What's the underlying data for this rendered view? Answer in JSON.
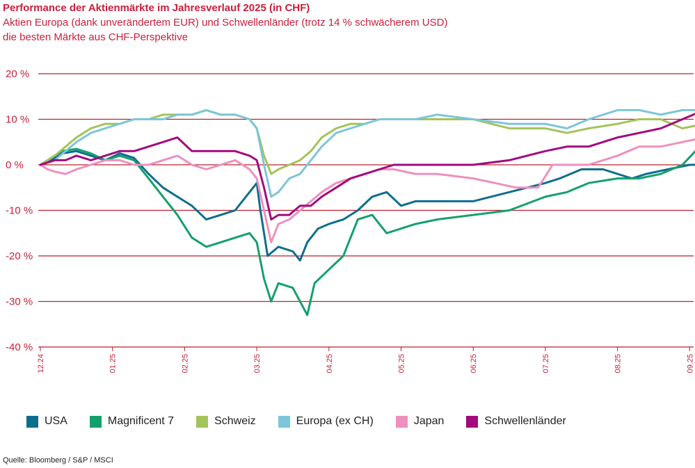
{
  "chart_data": {
    "type": "line",
    "title": "Performance der Aktienmärkte im Jahresverlauf 2025 (in CHF)",
    "subtitle_lines": [
      "Aktien Europa (dank unverändertem EUR) und Schwellenländer (trotz 14 % schwächerem USD)",
      "die besten Märkte aus CHF-Perspektive"
    ],
    "ylim": [
      -40,
      20
    ],
    "yticks": [
      20,
      10,
      0,
      -10,
      -20,
      -30,
      -40
    ],
    "ytick_labels": [
      "20 %",
      "10 %",
      "0 %",
      "-10 %",
      "-20 %",
      "-30 %",
      "-40 %"
    ],
    "xticks": [
      "12.24",
      "01.25",
      "02.25",
      "03.25",
      "04.25",
      "05.25",
      "06.25",
      "07.25",
      "08.25",
      "09.25"
    ],
    "grid": true,
    "legend_position": "bottom",
    "series": [
      {
        "name": "USA",
        "color": "#0d6e8c",
        "points": [
          [
            0,
            0
          ],
          [
            0.1,
            0.5
          ],
          [
            0.2,
            1.5
          ],
          [
            0.3,
            2.5
          ],
          [
            0.5,
            3
          ],
          [
            0.7,
            2
          ],
          [
            0.9,
            1
          ],
          [
            1.1,
            2.5
          ],
          [
            1.3,
            1.5
          ],
          [
            1.5,
            -2
          ],
          [
            1.7,
            -5
          ],
          [
            1.9,
            -7
          ],
          [
            2.1,
            -9
          ],
          [
            2.3,
            -12
          ],
          [
            2.5,
            -11
          ],
          [
            2.7,
            -10
          ],
          [
            2.9,
            -6
          ],
          [
            3.0,
            -4
          ],
          [
            3.05,
            -10
          ],
          [
            3.15,
            -20
          ],
          [
            3.3,
            -18
          ],
          [
            3.5,
            -19
          ],
          [
            3.6,
            -21
          ],
          [
            3.7,
            -17
          ],
          [
            3.85,
            -14
          ],
          [
            4.0,
            -13
          ],
          [
            4.2,
            -12
          ],
          [
            4.4,
            -10
          ],
          [
            4.6,
            -7
          ],
          [
            4.8,
            -6
          ],
          [
            5.0,
            -9
          ],
          [
            5.2,
            -8
          ],
          [
            5.5,
            -8
          ],
          [
            6.0,
            -8
          ],
          [
            6.5,
            -6
          ],
          [
            7.0,
            -4
          ],
          [
            7.2,
            -3
          ],
          [
            7.5,
            -1
          ],
          [
            7.8,
            -1
          ],
          [
            8.0,
            -2
          ],
          [
            8.2,
            -3
          ],
          [
            8.4,
            -2
          ],
          [
            8.7,
            -1
          ],
          [
            9.0,
            0
          ],
          [
            9.2,
            0
          ]
        ]
      },
      {
        "name": "Magnificent 7",
        "color": "#14a06c",
        "points": [
          [
            0,
            0
          ],
          [
            0.1,
            1
          ],
          [
            0.2,
            2
          ],
          [
            0.3,
            3
          ],
          [
            0.5,
            3.5
          ],
          [
            0.7,
            2.5
          ],
          [
            0.9,
            1
          ],
          [
            1.1,
            2
          ],
          [
            1.3,
            1
          ],
          [
            1.5,
            -3
          ],
          [
            1.7,
            -7
          ],
          [
            1.9,
            -11
          ],
          [
            2.1,
            -16
          ],
          [
            2.3,
            -18
          ],
          [
            2.5,
            -17
          ],
          [
            2.7,
            -16
          ],
          [
            2.9,
            -15
          ],
          [
            3.0,
            -17
          ],
          [
            3.1,
            -25
          ],
          [
            3.2,
            -30
          ],
          [
            3.3,
            -26
          ],
          [
            3.5,
            -27
          ],
          [
            3.6,
            -30
          ],
          [
            3.7,
            -33
          ],
          [
            3.8,
            -26
          ],
          [
            4.0,
            -23
          ],
          [
            4.2,
            -20
          ],
          [
            4.4,
            -12
          ],
          [
            4.6,
            -11
          ],
          [
            4.8,
            -15
          ],
          [
            5.0,
            -14
          ],
          [
            5.2,
            -13
          ],
          [
            5.5,
            -12
          ],
          [
            6.0,
            -11
          ],
          [
            6.5,
            -10
          ],
          [
            7.0,
            -7
          ],
          [
            7.3,
            -6
          ],
          [
            7.6,
            -4
          ],
          [
            8.0,
            -3
          ],
          [
            8.3,
            -3
          ],
          [
            8.6,
            -2
          ],
          [
            8.9,
            0
          ],
          [
            9.2,
            5
          ]
        ]
      },
      {
        "name": "Schweiz",
        "color": "#a3c45a",
        "points": [
          [
            0,
            0
          ],
          [
            0.1,
            1
          ],
          [
            0.2,
            2
          ],
          [
            0.35,
            4
          ],
          [
            0.5,
            6
          ],
          [
            0.7,
            8
          ],
          [
            0.9,
            9
          ],
          [
            1.1,
            9
          ],
          [
            1.3,
            10
          ],
          [
            1.5,
            10
          ],
          [
            1.7,
            11
          ],
          [
            1.9,
            11
          ],
          [
            2.1,
            11
          ],
          [
            2.3,
            12
          ],
          [
            2.5,
            11
          ],
          [
            2.7,
            11
          ],
          [
            2.9,
            10
          ],
          [
            3.0,
            8
          ],
          [
            3.1,
            2
          ],
          [
            3.2,
            -2
          ],
          [
            3.3,
            -1
          ],
          [
            3.45,
            0
          ],
          [
            3.6,
            1
          ],
          [
            3.75,
            3
          ],
          [
            3.9,
            6
          ],
          [
            4.1,
            8
          ],
          [
            4.3,
            9
          ],
          [
            4.5,
            9
          ],
          [
            4.7,
            10
          ],
          [
            4.9,
            10
          ],
          [
            5.2,
            10
          ],
          [
            5.5,
            10
          ],
          [
            6.0,
            10
          ],
          [
            6.5,
            8
          ],
          [
            7.0,
            8
          ],
          [
            7.3,
            7
          ],
          [
            7.6,
            8
          ],
          [
            8.0,
            9
          ],
          [
            8.3,
            10
          ],
          [
            8.6,
            10
          ],
          [
            8.9,
            8
          ],
          [
            9.2,
            9
          ]
        ]
      },
      {
        "name": "Europa (ex CH)",
        "color": "#7cc6d8",
        "points": [
          [
            0,
            0
          ],
          [
            0.1,
            0.5
          ],
          [
            0.2,
            1
          ],
          [
            0.35,
            3
          ],
          [
            0.5,
            5
          ],
          [
            0.7,
            7
          ],
          [
            0.9,
            8
          ],
          [
            1.1,
            9
          ],
          [
            1.3,
            10
          ],
          [
            1.5,
            10
          ],
          [
            1.7,
            10
          ],
          [
            1.9,
            11
          ],
          [
            2.1,
            11
          ],
          [
            2.3,
            12
          ],
          [
            2.5,
            11
          ],
          [
            2.7,
            11
          ],
          [
            2.9,
            10
          ],
          [
            3.0,
            8
          ],
          [
            3.1,
            0
          ],
          [
            3.2,
            -7
          ],
          [
            3.3,
            -6
          ],
          [
            3.45,
            -3
          ],
          [
            3.6,
            -2
          ],
          [
            3.75,
            1
          ],
          [
            3.9,
            4
          ],
          [
            4.1,
            7
          ],
          [
            4.3,
            8
          ],
          [
            4.5,
            9
          ],
          [
            4.7,
            10
          ],
          [
            4.9,
            10
          ],
          [
            5.2,
            10
          ],
          [
            5.5,
            11
          ],
          [
            6.0,
            10
          ],
          [
            6.5,
            9
          ],
          [
            7.0,
            9
          ],
          [
            7.3,
            8
          ],
          [
            7.6,
            10
          ],
          [
            8.0,
            12
          ],
          [
            8.3,
            12
          ],
          [
            8.6,
            11
          ],
          [
            8.9,
            12
          ],
          [
            9.2,
            12
          ]
        ]
      },
      {
        "name": "Japan",
        "color": "#ef8fbf",
        "points": [
          [
            0,
            0
          ],
          [
            0.1,
            -1
          ],
          [
            0.2,
            -1.5
          ],
          [
            0.35,
            -2
          ],
          [
            0.5,
            -1
          ],
          [
            0.7,
            0
          ],
          [
            0.9,
            1
          ],
          [
            1.1,
            1
          ],
          [
            1.3,
            0
          ],
          [
            1.5,
            0
          ],
          [
            1.7,
            1
          ],
          [
            1.9,
            2
          ],
          [
            2.1,
            0
          ],
          [
            2.3,
            -1
          ],
          [
            2.5,
            0
          ],
          [
            2.7,
            1
          ],
          [
            2.9,
            -1
          ],
          [
            3.0,
            -3
          ],
          [
            3.1,
            -10
          ],
          [
            3.2,
            -17
          ],
          [
            3.3,
            -13
          ],
          [
            3.45,
            -12
          ],
          [
            3.6,
            -10
          ],
          [
            3.75,
            -8
          ],
          [
            3.9,
            -6
          ],
          [
            4.1,
            -4
          ],
          [
            4.3,
            -3
          ],
          [
            4.5,
            -2
          ],
          [
            4.7,
            -1
          ],
          [
            4.9,
            -1
          ],
          [
            5.2,
            -2
          ],
          [
            5.5,
            -2
          ],
          [
            6.0,
            -3
          ],
          [
            6.3,
            -4
          ],
          [
            6.6,
            -5
          ],
          [
            6.9,
            -5
          ],
          [
            7.1,
            0
          ],
          [
            7.3,
            0
          ],
          [
            7.6,
            0
          ],
          [
            8.0,
            2
          ],
          [
            8.3,
            4
          ],
          [
            8.6,
            4
          ],
          [
            8.9,
            5
          ],
          [
            9.2,
            6
          ]
        ]
      },
      {
        "name": "Schwellenländer",
        "color": "#a3097c",
        "points": [
          [
            0,
            0
          ],
          [
            0.1,
            0.5
          ],
          [
            0.2,
            1
          ],
          [
            0.35,
            1
          ],
          [
            0.5,
            2
          ],
          [
            0.7,
            1
          ],
          [
            0.9,
            2
          ],
          [
            1.1,
            3
          ],
          [
            1.3,
            3
          ],
          [
            1.5,
            4
          ],
          [
            1.7,
            5
          ],
          [
            1.9,
            6
          ],
          [
            2.1,
            3
          ],
          [
            2.3,
            3
          ],
          [
            2.5,
            3
          ],
          [
            2.7,
            3
          ],
          [
            2.9,
            2
          ],
          [
            3.0,
            1
          ],
          [
            3.1,
            -5
          ],
          [
            3.2,
            -12
          ],
          [
            3.3,
            -11
          ],
          [
            3.45,
            -11
          ],
          [
            3.6,
            -9
          ],
          [
            3.75,
            -9
          ],
          [
            3.9,
            -7
          ],
          [
            4.1,
            -5
          ],
          [
            4.3,
            -3
          ],
          [
            4.5,
            -2
          ],
          [
            4.7,
            -1
          ],
          [
            4.9,
            0
          ],
          [
            5.2,
            0
          ],
          [
            5.5,
            0
          ],
          [
            6.0,
            0
          ],
          [
            6.5,
            1
          ],
          [
            7.0,
            3
          ],
          [
            7.3,
            4
          ],
          [
            7.6,
            4
          ],
          [
            8.0,
            6
          ],
          [
            8.3,
            7
          ],
          [
            8.6,
            8
          ],
          [
            8.9,
            10
          ],
          [
            9.2,
            12
          ]
        ]
      }
    ]
  },
  "chart_meta": {
    "source": "Quelle: Bloomberg / S&P / MSCI"
  }
}
